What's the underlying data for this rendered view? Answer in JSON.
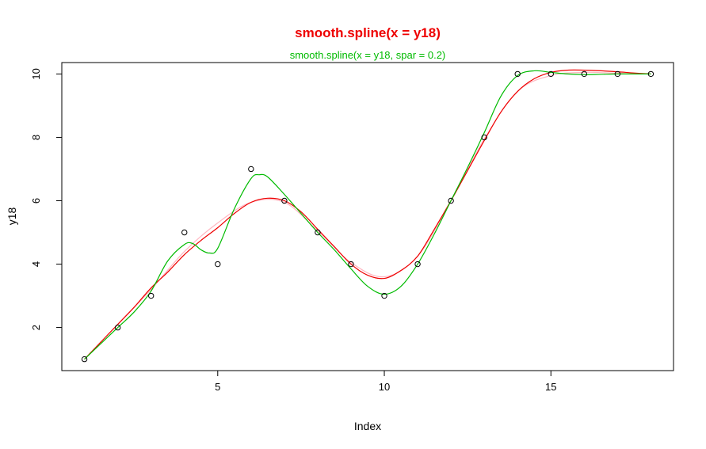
{
  "chart_data": {
    "type": "scatter",
    "title": "smooth.spline(x = y18)",
    "subtitle": "smooth.spline(x = y18, spar = 0.2)",
    "xlabel": "Index",
    "ylabel": "y18",
    "xlim": [
      0.32,
      18.68
    ],
    "ylim": [
      0.64,
      10.36
    ],
    "xticks": [
      5,
      10,
      15
    ],
    "yticks": [
      2,
      4,
      6,
      8,
      10
    ],
    "grid": false,
    "colors": {
      "title": "#ee0000",
      "subtitle": "#00bb00",
      "points": "#000000",
      "axis": "#000000"
    },
    "points": {
      "x": [
        1,
        2,
        3,
        4,
        5,
        6,
        7,
        8,
        9,
        10,
        11,
        12,
        13,
        14,
        15,
        16,
        17,
        18
      ],
      "y": [
        1,
        2,
        3,
        5,
        4,
        7,
        6,
        5,
        4,
        3,
        4,
        6,
        8,
        10,
        10,
        10,
        10,
        10
      ]
    },
    "series": [
      {
        "color": "#ffb6c1",
        "x": [
          1,
          2,
          3,
          4,
          5,
          6,
          7,
          8,
          9,
          10,
          11,
          12,
          13,
          14,
          15,
          16,
          17,
          18
        ],
        "y": [
          1.0,
          2.1,
          3.2,
          4.4,
          5.3,
          5.95,
          5.95,
          5.05,
          4.05,
          3.6,
          4.25,
          6.0,
          7.95,
          9.45,
          9.95,
          10.05,
          10.02,
          10.0
        ]
      },
      {
        "color": "#ee0000",
        "x": [
          1,
          1.5,
          2,
          2.5,
          3,
          3.5,
          4,
          4.5,
          5,
          5.5,
          6,
          6.5,
          7,
          7.5,
          8,
          8.5,
          9,
          9.5,
          10,
          10.5,
          11,
          11.5,
          12,
          12.5,
          13,
          13.5,
          14,
          14.5,
          15,
          15.5,
          16,
          16.5,
          17,
          17.5,
          18
        ],
        "y": [
          1.0,
          1.55,
          2.1,
          2.65,
          3.25,
          3.75,
          4.3,
          4.75,
          5.15,
          5.6,
          5.95,
          6.08,
          6.0,
          5.65,
          5.1,
          4.55,
          4.0,
          3.65,
          3.55,
          3.8,
          4.25,
          5.1,
          6.0,
          6.95,
          7.9,
          8.8,
          9.45,
          9.85,
          10.05,
          10.12,
          10.12,
          10.1,
          10.07,
          10.03,
          10.0
        ]
      },
      {
        "color": "#00bb00",
        "x": [
          1,
          1.5,
          2,
          2.5,
          3,
          3.5,
          4,
          4.25,
          4.5,
          4.75,
          5,
          5.5,
          6,
          6.25,
          6.5,
          7,
          7.5,
          8,
          8.5,
          9,
          9.5,
          10,
          10.5,
          11,
          11.5,
          12,
          12.5,
          13,
          13.5,
          14,
          14.5,
          15,
          15.5,
          16,
          16.5,
          17,
          17.5,
          18
        ],
        "y": [
          1.0,
          1.5,
          2.0,
          2.5,
          3.15,
          4.1,
          4.62,
          4.65,
          4.45,
          4.35,
          4.5,
          5.75,
          6.7,
          6.82,
          6.75,
          6.2,
          5.6,
          5.0,
          4.45,
          3.85,
          3.3,
          3.05,
          3.3,
          4.0,
          4.95,
          6.0,
          7.05,
          8.15,
          9.3,
          9.95,
          10.1,
          10.05,
          10.0,
          9.98,
          9.99,
          10.0,
          10.0,
          10.0
        ]
      }
    ]
  }
}
